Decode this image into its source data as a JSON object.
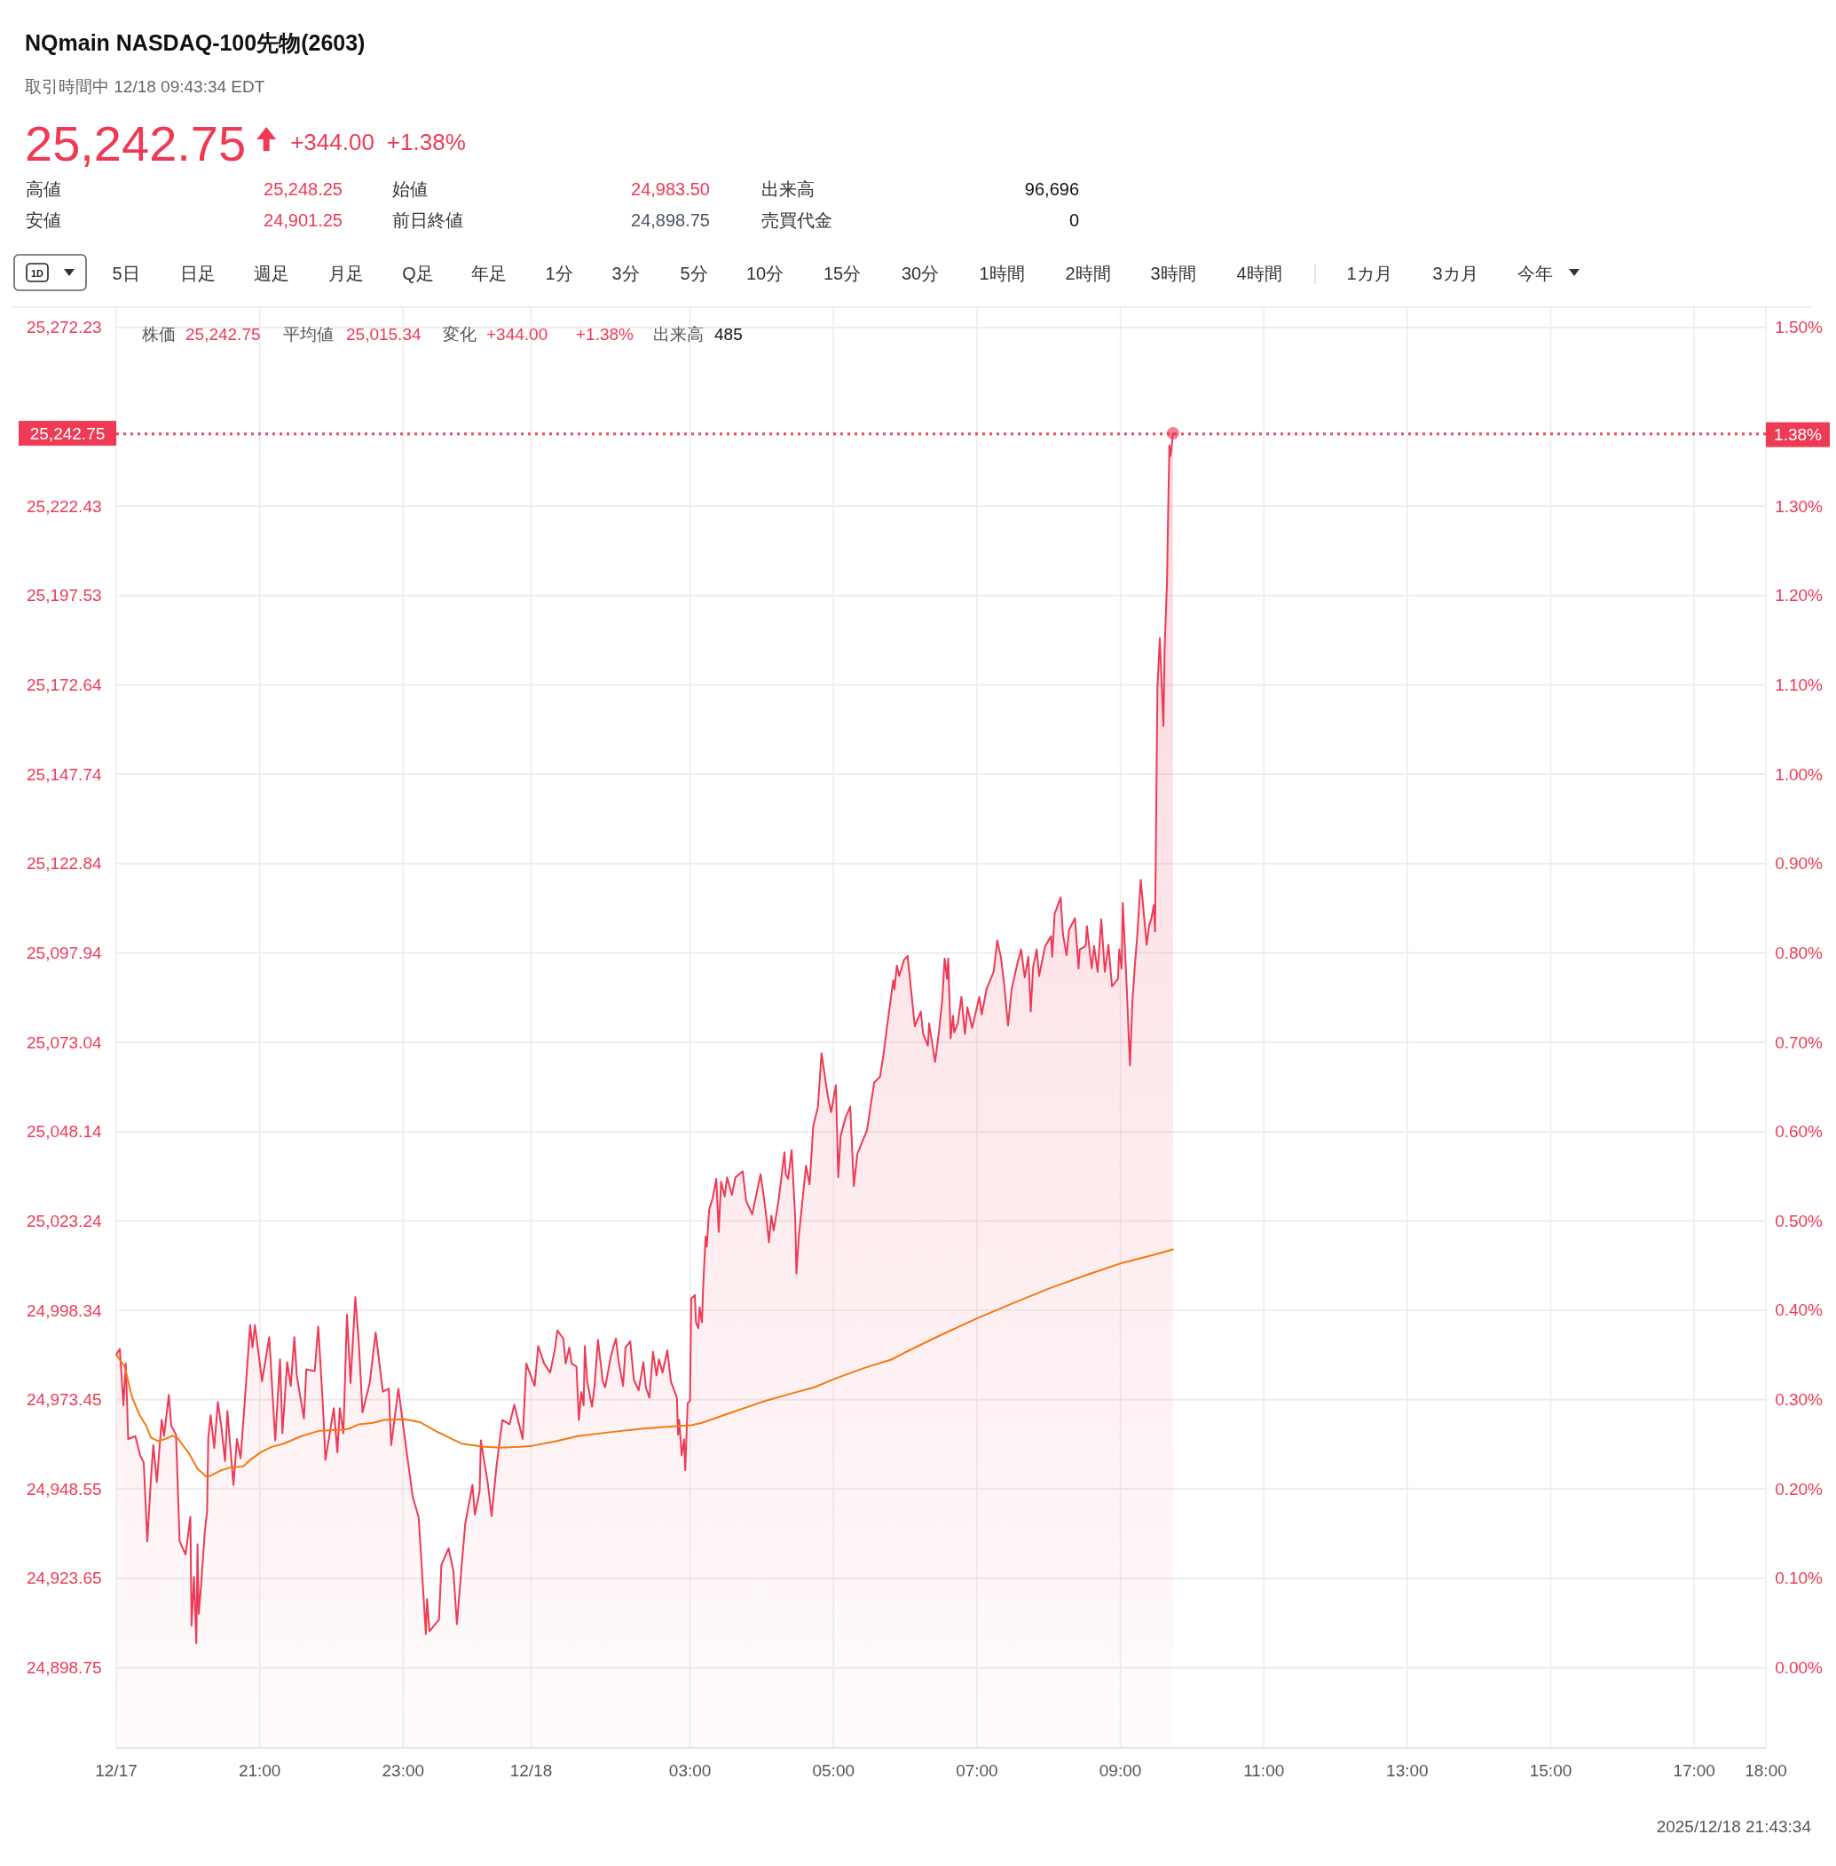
{
  "chart_data": {
    "type": "area",
    "title": "NQmain  NASDAQ-100先物(2603)",
    "subtitle": "取引時間中 12/18 09:43:34 EDT",
    "annotations": [
      "25,242.75",
      "+344.00",
      "+1.38%",
      "高値",
      "25,248.25",
      "始値",
      "24,983.50",
      "出来高",
      "96,696",
      "安値",
      "24,901.25",
      "前日終値",
      "24,898.75",
      "売買代金",
      "0",
      "1D",
      "5日",
      "日足",
      "週足",
      "月足",
      "Q足",
      "年足",
      "1分",
      "3分",
      "5分",
      "10分",
      "15分",
      "30分",
      "1時間",
      "2時間",
      "3時間",
      "4時間",
      "1カ月",
      "3カ月",
      "今年",
      "株価",
      "25,242.75",
      "平均値",
      "25,015.34",
      "変化",
      "+344.00",
      "+1.38%",
      "出来高",
      "485",
      "2025/12/18 21:43:34"
    ],
    "xlim": [
      "2025-12-17T19:00",
      "2025-12-18T18:00"
    ],
    "xticks": [
      {
        "value": "2025-12-17T19:00",
        "label": "12/17"
      },
      {
        "value": "2025-12-17T21:00",
        "label": "21:00"
      },
      {
        "value": "2025-12-17T23:00",
        "label": "23:00"
      },
      {
        "value": "2025-12-18T00:47",
        "label": "12/18"
      },
      {
        "value": "2025-12-18T03:00",
        "label": "03:00"
      },
      {
        "value": "2025-12-18T05:00",
        "label": "05:00"
      },
      {
        "value": "2025-12-18T07:00",
        "label": "07:00"
      },
      {
        "value": "2025-12-18T09:00",
        "label": "09:00"
      },
      {
        "value": "2025-12-18T11:00",
        "label": "11:00"
      },
      {
        "value": "2025-12-18T13:00",
        "label": "13:00"
      },
      {
        "value": "2025-12-18T15:00",
        "label": "15:00"
      },
      {
        "value": "2025-12-18T17:00",
        "label": "17:00"
      },
      {
        "value": "2025-12-18T18:00",
        "label": "18:00"
      }
    ],
    "ylim": [
      24876.4,
      25277.9
    ],
    "yticks": [
      {
        "value": 24898.75,
        "label": "24,898.75"
      },
      {
        "value": 24923.65,
        "label": "24,923.65"
      },
      {
        "value": 24948.55,
        "label": "24,948.55"
      },
      {
        "value": 24973.45,
        "label": "24,973.45"
      },
      {
        "value": 24998.34,
        "label": "24,998.34"
      },
      {
        "value": 25023.24,
        "label": "25,023.24"
      },
      {
        "value": 25048.14,
        "label": "25,048.14"
      },
      {
        "value": 25073.04,
        "label": "25,073.04"
      },
      {
        "value": 25097.94,
        "label": "25,097.94"
      },
      {
        "value": 25122.84,
        "label": "25,122.84"
      },
      {
        "value": 25147.74,
        "label": "25,147.74"
      },
      {
        "value": 25172.64,
        "label": "25,172.64"
      },
      {
        "value": 25197.53,
        "label": "25,197.53"
      },
      {
        "value": 25222.43,
        "label": "25,222.43"
      },
      {
        "value": 25272.23,
        "label": "25,272.23"
      }
    ],
    "y2lim": [
      -0.0899,
      1.5227
    ],
    "y2ticks": [
      {
        "value": 0,
        "label": "0.00%"
      },
      {
        "value": 0.1,
        "label": "0.10%"
      },
      {
        "value": 0.2,
        "label": "0.20%"
      },
      {
        "value": 0.3,
        "label": "0.30%"
      },
      {
        "value": 0.4,
        "label": "0.40%"
      },
      {
        "value": 0.5,
        "label": "0.50%"
      },
      {
        "value": 0.6,
        "label": "0.60%"
      },
      {
        "value": 0.7,
        "label": "0.70%"
      },
      {
        "value": 0.8,
        "label": "0.80%"
      },
      {
        "value": 0.9,
        "label": "0.90%"
      },
      {
        "value": 1.0,
        "label": "1.00%"
      },
      {
        "value": 1.1,
        "label": "1.10%"
      },
      {
        "value": 1.2,
        "label": "1.20%"
      },
      {
        "value": 1.3,
        "label": "1.30%"
      },
      {
        "value": 1.5,
        "label": "1.50%"
      }
    ],
    "grid": true,
    "ref_lines": [
      {
        "axis": "y",
        "value": 25242.75,
        "label": "25,242.75",
        "color": "#ee3a55",
        "line_style": "dotted"
      },
      {
        "axis": "y2",
        "value": 1.38,
        "label": "1.38%",
        "color": "#ee3a55",
        "line_style": "dotted"
      }
    ],
    "series": [
      {
        "color": "#ee3a55",
        "x": [
          "2025-12-17T19:00",
          "2025-12-17T19:03",
          "2025-12-17T19:06",
          "2025-12-17T19:08",
          "2025-12-17T19:10",
          "2025-12-17T19:16",
          "2025-12-17T19:20",
          "2025-12-17T19:23",
          "2025-12-17T19:26",
          "2025-12-17T19:29",
          "2025-12-17T19:31",
          "2025-12-17T19:34",
          "2025-12-17T19:38",
          "2025-12-17T19:40",
          "2025-12-17T19:44",
          "2025-12-17T19:46",
          "2025-12-17T19:50",
          "2025-12-17T19:53",
          "2025-12-17T19:58",
          "2025-12-17T20:02",
          "2025-12-17T20:03",
          "2025-12-17T20:05",
          "2025-12-17T20:07",
          "2025-12-17T20:08",
          "2025-12-17T20:09",
          "2025-12-17T20:11",
          "2025-12-17T20:14",
          "2025-12-17T20:16",
          "2025-12-17T20:17",
          "2025-12-17T20:19",
          "2025-12-17T20:22",
          "2025-12-17T20:25",
          "2025-12-17T20:28",
          "2025-12-17T20:31",
          "2025-12-17T20:33",
          "2025-12-17T20:38",
          "2025-12-17T20:41",
          "2025-12-17T20:44",
          "2025-12-17T20:47",
          "2025-12-17T20:52",
          "2025-12-17T20:54",
          "2025-12-17T20:56",
          "2025-12-17T21:02",
          "2025-12-17T21:08",
          "2025-12-17T21:13",
          "2025-12-17T21:17",
          "2025-12-17T21:19",
          "2025-12-17T21:23",
          "2025-12-17T21:26",
          "2025-12-17T21:29",
          "2025-12-17T21:31",
          "2025-12-17T21:37",
          "2025-12-17T21:39",
          "2025-12-17T21:46",
          "2025-12-17T21:49",
          "2025-12-17T21:53",
          "2025-12-17T21:55",
          "2025-12-17T22:02",
          "2025-12-17T22:05",
          "2025-12-17T22:07",
          "2025-12-17T22:10",
          "2025-12-17T22:13",
          "2025-12-17T22:16",
          "2025-12-17T22:20",
          "2025-12-17T22:23",
          "2025-12-17T22:26",
          "2025-12-17T22:32",
          "2025-12-17T22:37",
          "2025-12-17T22:43",
          "2025-12-17T22:48",
          "2025-12-17T22:50",
          "2025-12-17T22:56",
          "2025-12-17T23:02",
          "2025-12-17T23:08",
          "2025-12-17T23:13",
          "2025-12-17T23:19",
          "2025-12-17T23:20",
          "2025-12-17T23:22",
          "2025-12-17T23:30",
          "2025-12-17T23:32",
          "2025-12-17T23:38",
          "2025-12-17T23:42",
          "2025-12-17T23:45",
          "2025-12-17T23:49",
          "2025-12-17T23:52",
          "2025-12-17T23:58",
          "2025-12-18T00:00",
          "2025-12-18T00:04",
          "2025-12-18T00:05",
          "2025-12-18T00:11",
          "2025-12-18T00:14",
          "2025-12-18T00:18",
          "2025-12-18T00:23",
          "2025-12-18T00:29",
          "2025-12-18T00:33",
          "2025-12-18T00:40",
          "2025-12-18T00:43",
          "2025-12-18T00:50",
          "2025-12-18T00:53",
          "2025-12-18T00:58",
          "2025-12-18T01:03",
          "2025-12-18T01:07",
          "2025-12-18T01:09",
          "2025-12-18T01:14",
          "2025-12-18T01:16",
          "2025-12-18T01:19",
          "2025-12-18T01:21",
          "2025-12-18T01:25",
          "2025-12-18T01:27",
          "2025-12-18T01:29",
          "2025-12-18T01:31",
          "2025-12-18T01:32",
          "2025-12-18T01:34",
          "2025-12-18T01:38",
          "2025-12-18T01:40",
          "2025-12-18T01:43",
          "2025-12-18T01:47",
          "2025-12-18T01:49",
          "2025-12-18T01:54",
          "2025-12-18T01:58",
          "2025-12-18T02:00",
          "2025-12-18T02:04",
          "2025-12-18T02:06",
          "2025-12-18T02:10",
          "2025-12-18T02:13",
          "2025-12-18T02:17",
          "2025-12-18T02:21",
          "2025-12-18T02:23",
          "2025-12-18T02:26",
          "2025-12-18T02:29",
          "2025-12-18T02:32",
          "2025-12-18T02:34",
          "2025-12-18T02:37",
          "2025-12-18T02:41",
          "2025-12-18T02:44",
          "2025-12-18T02:49",
          "2025-12-18T02:50",
          "2025-12-18T02:51",
          "2025-12-18T02:53",
          "2025-12-18T02:55",
          "2025-12-18T02:56",
          "2025-12-18T02:58",
          "2025-12-18T03:00",
          "2025-12-18T03:01",
          "2025-12-18T03:04",
          "2025-12-18T03:05",
          "2025-12-18T03:07",
          "2025-12-18T03:08",
          "2025-12-18T03:10",
          "2025-12-18T03:11",
          "2025-12-18T03:13",
          "2025-12-18T03:14",
          "2025-12-18T03:16",
          "2025-12-18T03:19",
          "2025-12-18T03:22",
          "2025-12-18T03:24",
          "2025-12-18T03:26",
          "2025-12-18T03:29",
          "2025-12-18T03:31",
          "2025-12-18T03:35",
          "2025-12-18T03:38",
          "2025-12-18T03:44",
          "2025-12-18T03:47",
          "2025-12-18T03:52",
          "2025-12-18T03:59",
          "2025-12-18T04:02",
          "2025-12-18T04:04",
          "2025-12-18T04:06",
          "2025-12-18T04:08",
          "2025-12-18T04:10",
          "2025-12-18T04:14",
          "2025-12-18T04:19",
          "2025-12-18T04:20",
          "2025-12-18T04:22",
          "2025-12-18T04:25",
          "2025-12-18T04:28",
          "2025-12-18T04:29",
          "2025-12-18T04:31",
          "2025-12-18T04:34",
          "2025-12-18T04:37",
          "2025-12-18T04:40",
          "2025-12-18T04:41",
          "2025-12-18T04:43",
          "2025-12-18T04:47",
          "2025-12-18T04:50",
          "2025-12-18T04:55",
          "2025-12-18T04:58",
          "2025-12-18T05:02",
          "2025-12-18T05:04",
          "2025-12-18T05:06",
          "2025-12-18T05:10",
          "2025-12-18T05:14",
          "2025-12-18T05:17",
          "2025-12-18T05:20",
          "2025-12-18T05:24",
          "2025-12-18T05:28",
          "2025-12-18T05:34",
          "2025-12-18T05:39",
          "2025-12-18T05:42",
          "2025-12-18T05:45",
          "2025-12-18T05:50",
          "2025-12-18T05:51",
          "2025-12-18T05:53",
          "2025-12-18T05:55",
          "2025-12-18T05:59",
          "2025-12-18T06:02",
          "2025-12-18T06:06",
          "2025-12-18T06:08",
          "2025-12-18T06:13",
          "2025-12-18T06:15",
          "2025-12-18T06:19",
          "2025-12-18T06:20",
          "2025-12-18T06:25",
          "2025-12-18T06:28",
          "2025-12-18T06:31",
          "2025-12-18T06:33",
          "2025-12-18T06:35",
          "2025-12-18T06:36",
          "2025-12-18T06:38",
          "2025-12-18T06:40",
          "2025-12-18T06:41",
          "2025-12-18T06:44",
          "2025-12-18T06:47",
          "2025-12-18T06:50",
          "2025-12-18T06:52",
          "2025-12-18T06:56",
          "2025-12-18T07:02",
          "2025-12-18T07:04",
          "2025-12-18T07:08",
          "2025-12-18T07:11",
          "2025-12-18T07:14",
          "2025-12-18T07:17",
          "2025-12-18T07:20",
          "2025-12-18T07:23",
          "2025-12-18T07:26",
          "2025-12-18T07:29",
          "2025-12-18T07:34",
          "2025-12-18T07:37",
          "2025-12-18T07:40",
          "2025-12-18T07:43",
          "2025-12-18T07:45",
          "2025-12-18T07:47",
          "2025-12-18T07:50",
          "2025-12-18T07:52",
          "2025-12-18T07:57",
          "2025-12-18T08:02",
          "2025-12-18T08:03",
          "2025-12-18T08:05",
          "2025-12-18T08:10",
          "2025-12-18T08:12",
          "2025-12-18T08:15",
          "2025-12-18T08:17",
          "2025-12-18T08:22",
          "2025-12-18T08:25",
          "2025-12-18T08:26",
          "2025-12-18T08:31",
          "2025-12-18T08:32",
          "2025-12-18T08:36",
          "2025-12-18T08:38",
          "2025-12-18T08:41",
          "2025-12-18T08:44",
          "2025-12-18T08:47",
          "2025-12-18T08:50",
          "2025-12-18T08:53",
          "2025-12-18T08:58",
          "2025-12-18T08:59",
          "2025-12-18T09:01",
          "2025-12-18T09:02",
          "2025-12-18T09:05",
          "2025-12-18T09:08",
          "2025-12-18T09:10",
          "2025-12-18T09:12",
          "2025-12-18T09:14",
          "2025-12-18T09:17",
          "2025-12-18T09:22",
          "2025-12-18T09:24",
          "2025-12-18T09:26",
          "2025-12-18T09:28",
          "2025-12-18T09:29",
          "2025-12-18T09:31",
          "2025-12-18T09:33",
          "2025-12-18T09:36",
          "2025-12-18T09:37",
          "2025-12-18T09:39",
          "2025-12-18T09:40",
          "2025-12-18T09:41",
          "2025-12-18T09:42",
          "2025-12-18T09:44"
        ],
        "values": [
          24986.0,
          24987.6,
          24971.9,
          24983.5,
          24962.5,
          24963.3,
          24957.9,
          24955.9,
          24934.0,
          24951.3,
          24960.8,
          24950.5,
          24967.8,
          24963.3,
          24974.8,
          24966.2,
          24963.7,
          24934.0,
          24930.3,
          24940.8,
          24910.5,
          24924.1,
          24905.6,
          24933.2,
          24913.8,
          24921.7,
          24936.5,
          24942.3,
          24962.9,
          24969.1,
          24960.0,
          24972.8,
          24965.8,
          24956.3,
          24970.3,
          24949.7,
          24962.5,
          24957.1,
          24970.7,
          24994.2,
          24988.0,
          24994.2,
          24978.6,
          24990.9,
          24962.1,
          24984.7,
          24964.1,
          24983.9,
          24977.3,
          24990.9,
          24980.2,
          24968.2,
          24981.9,
          24981.4,
          24993.8,
          24971.1,
          24956.7,
          24971.1,
          24958.8,
          24971.1,
          24964.1,
          24997.1,
          24978.1,
          25002.0,
          24988.9,
          24969.9,
          24978.1,
          24992.2,
          24975.7,
          24976.5,
          24960.8,
          24976.5,
          24961.2,
          24946.4,
          24940.6,
          24908.1,
          24917.9,
          24908.9,
          24912.2,
          24927.4,
          24932.0,
          24925.8,
          24910.9,
          24927.4,
          24939.0,
          24949.7,
          24941.4,
          24948.0,
          24962.1,
          24949.7,
          24941.0,
          24954.6,
          24967.8,
          24966.6,
          24972.0,
          24962.5,
          24983.5,
          24977.3,
          24988.4,
          24983.5,
          24981.0,
          24987.6,
          24992.7,
          24990.5,
          24983.5,
          24988.0,
          24983.5,
          24982.7,
          24967.8,
          24975.6,
          24971.9,
          24988.4,
          24978.5,
          24971.5,
          24976.9,
          24990.1,
          24978.5,
          24976.9,
          24985.9,
          24990.5,
          24984.7,
          24977.3,
          24988.0,
          24989.7,
          24979.0,
          24976.1,
          24983.9,
          24976.9,
          24974.0,
          24986.8,
          24980.2,
          24984.7,
          24981.0,
          24987.2,
          24978.5,
          24974.0,
          24963.7,
          24967.8,
          24957.9,
          24962.4,
          24953.8,
          24972.4,
          24973.2,
          25001.6,
          25002.6,
          24995.0,
          24993.4,
          24999.2,
          24995.0,
          25004.9,
          25018.9,
          25016.1,
          25026.4,
          25029.7,
          25035.0,
          25020.2,
          25034.2,
          25030.1,
          25035.4,
          25030.5,
          25035.4,
          25037.1,
          25028.8,
          25025.1,
          25036.3,
          25029.3,
          25023.9,
          25017.3,
          25024.7,
          25020.6,
          25028.8,
          25042.4,
          25036.3,
          25035.0,
          25043.0,
          25023.9,
          25008.6,
          25018.9,
          25028.8,
          25038.7,
          25033.4,
          25038.7,
          25049.5,
          25055.1,
          25070.0,
          25058.5,
          25053.6,
          25061.1,
          25035.4,
          25047.0,
          25052.0,
          25055.1,
          25033.0,
          25042.0,
          25045.3,
          25048.5,
          25061.8,
          25063.5,
          25070.1,
          25077.9,
          25090.3,
          25087.8,
          25094.4,
          25091.5,
          25096.0,
          25097.1,
          25084.1,
          25077.5,
          25081.6,
          25075.4,
          25072.1,
          25078.3,
          25067.6,
          25075.4,
          25084.9,
          25096.4,
          25090.7,
          25096.4,
          25074.2,
          25080.4,
          25075.8,
          25078.3,
          25085.7,
          25075.4,
          25082.8,
          25077.1,
          25085.7,
          25080.8,
          25087.8,
          25090.3,
          25092.7,
          25101.4,
          25096.9,
          25088.6,
          25077.7,
          25087.8,
          25095.2,
          25098.9,
          25091.1,
          25096.9,
          25081.6,
          25094.0,
          25098.9,
          25091.5,
          25099.8,
          25102.6,
          25096.9,
          25108.8,
          25113.4,
          25103.0,
          25097.3,
          25104.3,
          25107.6,
          25093.6,
          25098.9,
          25099.9,
          25105.4,
          25093.6,
          25099.9,
          25092.7,
          25107.3,
          25092.7,
          25100.2,
          25088.6,
          25090.7,
          25098.9,
          25093.6,
          25111.9,
          25090.7,
          25066.6,
          25084.1,
          25094.0,
          25102.2,
          25118.3,
          25100.2,
          25105.5,
          25107.6,
          25111.3,
          25103.9,
          25172.1,
          25185.6,
          25161.2,
          25182.7,
          25201.3,
          25221.4,
          25239.4,
          25236.4,
          25242.75
        ]
      },
      {
        "type": "line",
        "color": "#f5790f",
        "x": [
          "2025-12-17T19:00",
          "2025-12-17T19:07",
          "2025-12-17T19:13",
          "2025-12-17T19:19",
          "2025-12-17T19:25",
          "2025-12-17T19:29",
          "2025-12-17T19:35",
          "2025-12-17T19:41",
          "2025-12-17T19:47",
          "2025-12-17T19:51",
          "2025-12-17T20:01",
          "2025-12-17T20:08",
          "2025-12-17T20:16",
          "2025-12-17T20:22",
          "2025-12-17T20:28",
          "2025-12-17T20:36",
          "2025-12-17T20:46",
          "2025-12-17T20:53",
          "2025-12-17T21:01",
          "2025-12-17T21:10",
          "2025-12-17T21:20",
          "2025-12-17T21:35",
          "2025-12-17T21:50",
          "2025-12-17T22:10",
          "2025-12-17T22:15",
          "2025-12-17T22:23",
          "2025-12-17T22:35",
          "2025-12-17T22:44",
          "2025-12-17T23:01",
          "2025-12-17T23:14",
          "2025-12-17T23:29",
          "2025-12-17T23:49",
          "2025-12-18T00:06",
          "2025-12-18T00:21",
          "2025-12-18T00:38",
          "2025-12-18T00:48",
          "2025-12-18T01:07",
          "2025-12-18T01:26",
          "2025-12-18T01:56",
          "2025-12-18T02:21",
          "2025-12-18T02:46",
          "2025-12-18T03:01",
          "2025-12-18T03:10",
          "2025-12-18T03:35",
          "2025-12-18T04:00",
          "2025-12-18T04:25",
          "2025-12-18T04:44",
          "2025-12-18T05:02",
          "2025-12-18T05:26",
          "2025-12-18T05:49",
          "2025-12-18T06:01",
          "2025-12-18T06:30",
          "2025-12-18T07:00",
          "2025-12-18T07:30",
          "2025-12-18T08:00",
          "2025-12-18T08:30",
          "2025-12-18T09:00",
          "2025-12-18T09:30",
          "2025-12-18T09:44"
        ],
        "values": [
          24986.0,
          24982.7,
          24974.4,
          24969.5,
          24966.2,
          24962.9,
          24961.9,
          24962.5,
          24963.4,
          24962.9,
          24958.4,
          24954.2,
          24951.8,
          24952.8,
          24953.8,
          24954.6,
          24954.8,
          24956.9,
          24958.8,
          24960.3,
          24961.2,
          24963.3,
          24964.8,
          24965.1,
          24965.4,
          24966.6,
          24967.0,
          24967.8,
          24968.0,
          24967.2,
          24964.4,
          24961.2,
          24960.4,
          24960.1,
          24960.3,
          24960.6,
          24961.8,
          24963.3,
          24964.5,
          24965.4,
          24966.0,
          24966.3,
          24967.0,
          24969.9,
          24972.8,
          24975.2,
          24976.9,
          24979.4,
          24982.3,
          24984.7,
          24986.8,
          24991.5,
          24996.1,
          25000.3,
          25004.4,
          25008.0,
          25011.4,
          25014.0,
          25015.3
        ]
      },
      {
        "type": "scatter",
        "color": "#ee3a55",
        "marker": "circle",
        "x": [
          "2025-12-18T09:44"
        ],
        "values": [
          25242.75
        ]
      }
    ]
  }
}
